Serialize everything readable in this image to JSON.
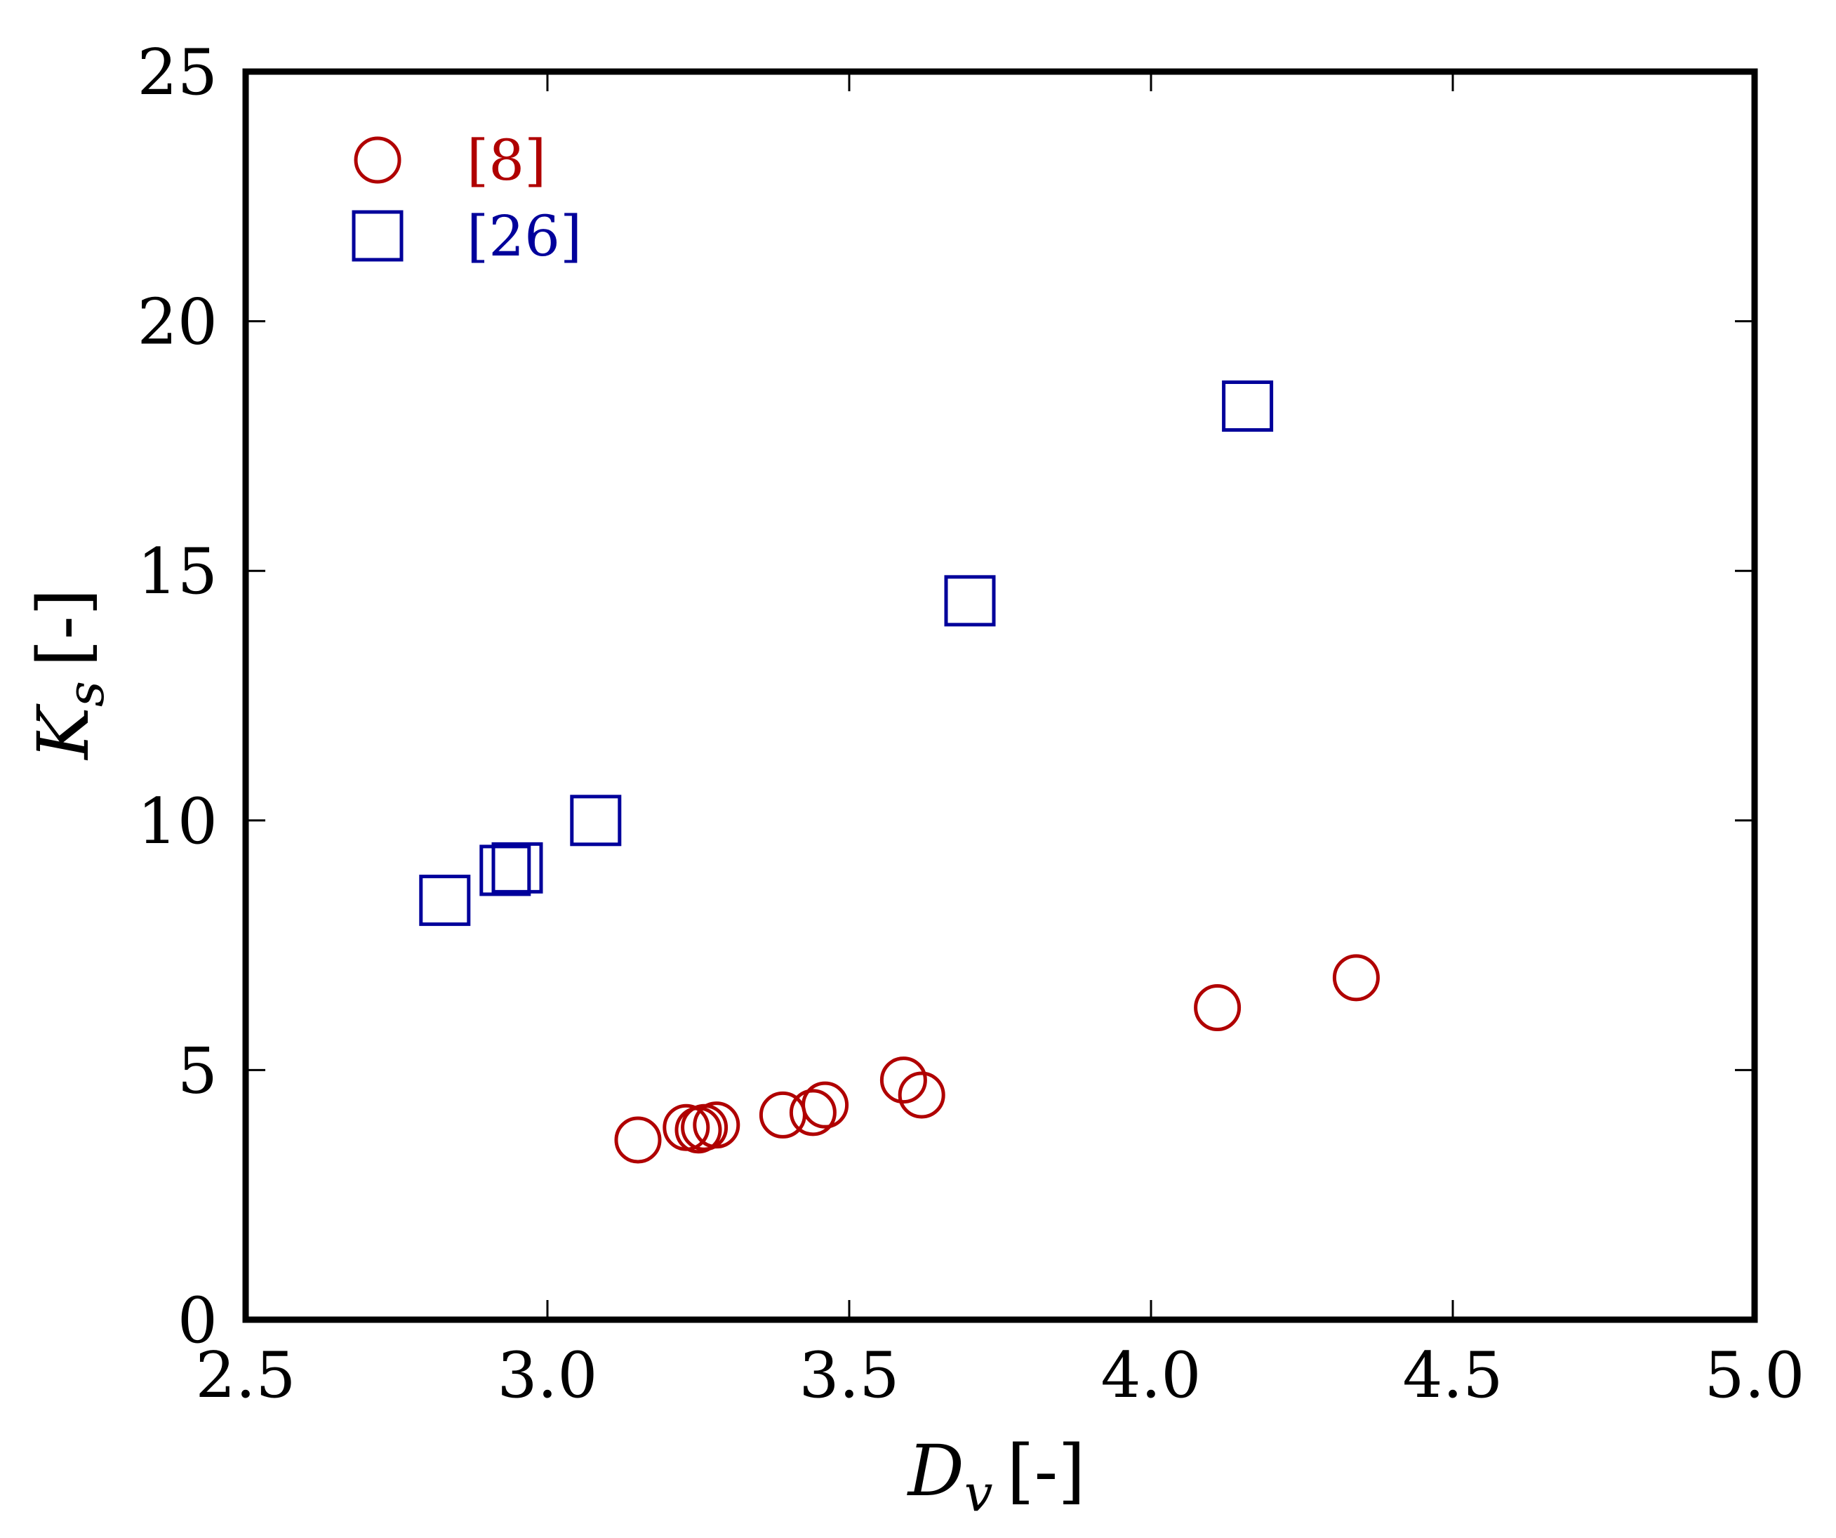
{
  "chart_data": {
    "type": "scatter",
    "xlabel": {
      "symbol": "D",
      "subscript": "v",
      "unit": "[-]"
    },
    "ylabel": {
      "symbol": "K",
      "subscript": "s",
      "unit": "[-]"
    },
    "xlim": [
      2.5,
      5.0
    ],
    "ylim": [
      0,
      25
    ],
    "xticks": [
      2.5,
      3.0,
      3.5,
      4.0,
      4.5,
      5.0
    ],
    "xtick_labels": [
      "2.5",
      "3.0",
      "3.5",
      "4.0",
      "4.5",
      "5.0"
    ],
    "yticks": [
      0,
      5,
      10,
      15,
      20,
      25
    ],
    "ytick_labels": [
      "0",
      "5",
      "10",
      "15",
      "20",
      "25"
    ],
    "grid": false,
    "legend_position": "top-left",
    "series": [
      {
        "name": "[8]",
        "marker": "circle",
        "color": "#b00000",
        "points": [
          [
            3.15,
            3.6
          ],
          [
            3.23,
            3.85
          ],
          [
            3.25,
            3.8
          ],
          [
            3.26,
            3.85
          ],
          [
            3.28,
            3.9
          ],
          [
            3.39,
            4.1
          ],
          [
            3.44,
            4.15
          ],
          [
            3.46,
            4.3
          ],
          [
            3.59,
            4.8
          ],
          [
            3.62,
            4.5
          ],
          [
            4.11,
            6.25
          ],
          [
            4.34,
            6.85
          ]
        ]
      },
      {
        "name": "[26]",
        "marker": "square",
        "color": "#00009b",
        "points": [
          [
            2.83,
            8.4
          ],
          [
            2.93,
            9.0
          ],
          [
            2.95,
            9.05
          ],
          [
            3.08,
            10.0
          ],
          [
            3.7,
            14.4
          ],
          [
            4.16,
            18.3
          ]
        ]
      }
    ]
  }
}
